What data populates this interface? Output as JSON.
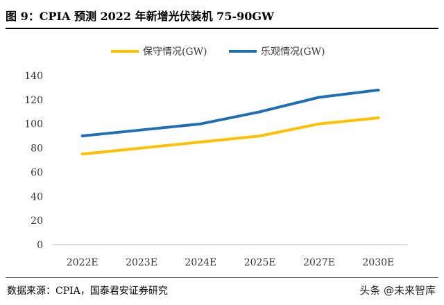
{
  "figure": {
    "title": "图 9：CPIA 预测 2022 年新增光伏装机 75-90GW",
    "source": "数据来源：CPIA，国泰君安证券研究",
    "watermark": "头条 @未来智库"
  },
  "chart_data": {
    "type": "line",
    "title": "",
    "xlabel": "",
    "ylabel": "",
    "categories": [
      "2022E",
      "2023E",
      "2024E",
      "2025E",
      "2027E",
      "2030E"
    ],
    "ylim": [
      0,
      140
    ],
    "yticks": [
      0,
      20,
      40,
      60,
      80,
      100,
      120,
      140
    ],
    "grid": false,
    "legend": "top-center",
    "series": [
      {
        "name": "保守情况(GW)",
        "color": "#FFC000",
        "values": [
          75,
          80,
          85,
          90,
          100,
          105
        ]
      },
      {
        "name": "乐观情况(GW)",
        "color": "#1F6FB5",
        "values": [
          90,
          95,
          100,
          110,
          122,
          128
        ]
      }
    ]
  }
}
